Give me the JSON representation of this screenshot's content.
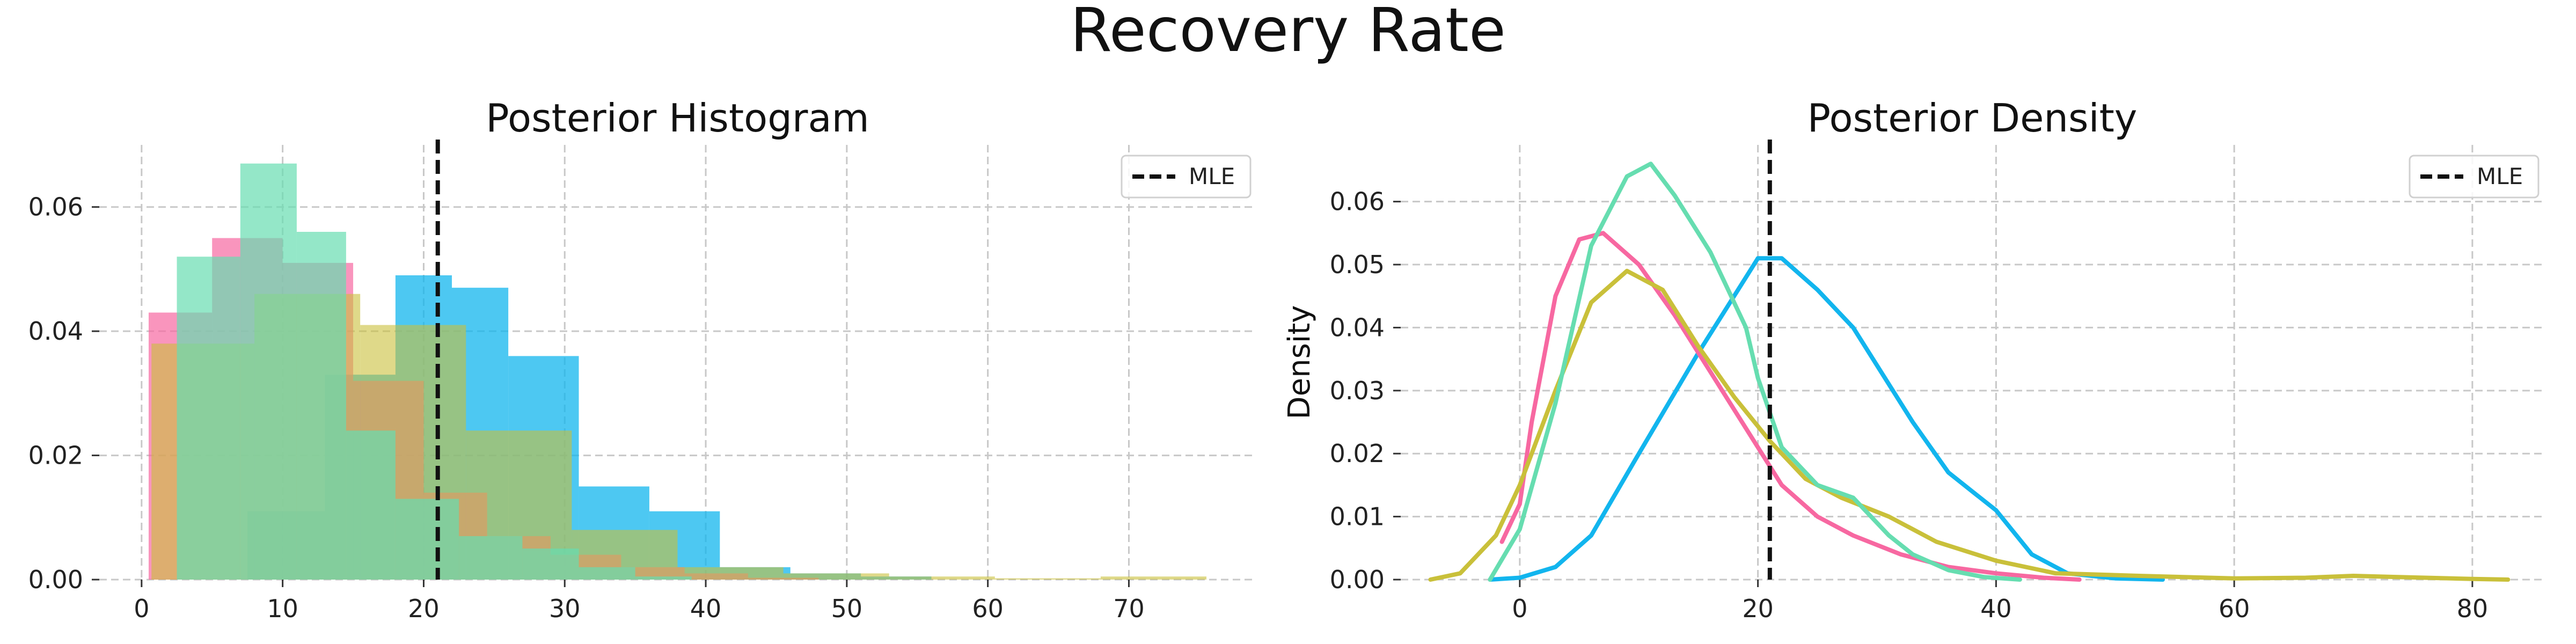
{
  "figure_title": "Recovery Rate",
  "colors": {
    "pink": "#f768a1",
    "mint": "#66ddb0",
    "olive": "#c9c03a",
    "cyan": "#12b5ee",
    "mle": "#111111",
    "grid": "#c8c8c8"
  },
  "chart_data": [
    {
      "type": "bar",
      "title": "Posterior Histogram",
      "xlabel": "",
      "ylabel": "",
      "xlim": [
        -3,
        79
      ],
      "ylim": [
        0,
        0.07
      ],
      "xticks": [
        0,
        10,
        20,
        30,
        40,
        50,
        60,
        70
      ],
      "xtick_labels": [
        "0",
        "10",
        "20",
        "30",
        "40",
        "50",
        "60",
        "70"
      ],
      "yticks": [
        0,
        0.02,
        0.04,
        0.06
      ],
      "ytick_labels": [
        "0.00",
        "0.02",
        "0.04",
        "0.06"
      ],
      "grid": true,
      "legend": {
        "position": "top-right",
        "entries": [
          "MLE"
        ]
      },
      "mle": 21,
      "series": [
        {
          "color": "#12b5ee",
          "alpha": 0.75,
          "edges": [
            2.5,
            7.5,
            13,
            18,
            22,
            26,
            31,
            36,
            41,
            46,
            51,
            56
          ],
          "values": [
            0.0,
            0.011,
            0.033,
            0.049,
            0.047,
            0.036,
            0.015,
            0.011,
            0.002,
            0.001,
            0.0005
          ]
        },
        {
          "color": "#f768a1",
          "alpha": 0.7,
          "edges": [
            0.5,
            5,
            10,
            15,
            20,
            24.5,
            29,
            34,
            38.5,
            43,
            48
          ],
          "values": [
            0.043,
            0.055,
            0.051,
            0.032,
            0.014,
            0.007,
            0.004,
            0.002,
            0.001,
            0.0003
          ]
        },
        {
          "color": "#c9c03a",
          "alpha": 0.6,
          "edges": [
            0.7,
            8,
            15.5,
            23,
            30.5,
            38,
            45.5,
            53,
            60.5,
            68,
            75.5
          ],
          "values": [
            0.038,
            0.046,
            0.041,
            0.024,
            0.008,
            0.002,
            0.001,
            0.0005,
            0.0002,
            0.0005
          ]
        },
        {
          "color": "#66ddb0",
          "alpha": 0.7,
          "edges": [
            2.5,
            7,
            11,
            14.5,
            18,
            22.5,
            27,
            31,
            35,
            39
          ],
          "values": [
            0.052,
            0.067,
            0.056,
            0.024,
            0.013,
            0.007,
            0.005,
            0.002,
            0.0005
          ]
        }
      ]
    },
    {
      "type": "line",
      "title": "Posterior Density",
      "xlabel": "",
      "ylabel": "Density",
      "xlim": [
        -10,
        86
      ],
      "ylim": [
        0,
        0.069
      ],
      "xticks": [
        0,
        20,
        40,
        60,
        80
      ],
      "xtick_labels": [
        "0",
        "20",
        "40",
        "60",
        "80"
      ],
      "yticks": [
        0,
        0.01,
        0.02,
        0.03,
        0.04,
        0.05,
        0.06
      ],
      "ytick_labels": [
        "0.00",
        "0.01",
        "0.02",
        "0.03",
        "0.04",
        "0.05",
        "0.06"
      ],
      "grid": true,
      "legend": {
        "position": "top-right",
        "entries": [
          "MLE"
        ]
      },
      "mle": 21,
      "series": [
        {
          "color": "#12b5ee",
          "x": [
            -2.5,
            0,
            3,
            6,
            10,
            15,
            20,
            22,
            25,
            28,
            30,
            33,
            36,
            38,
            40,
            43,
            46,
            50,
            54
          ],
          "y": [
            0.0,
            0.0003,
            0.002,
            0.007,
            0.02,
            0.036,
            0.051,
            0.051,
            0.046,
            0.04,
            0.034,
            0.025,
            0.017,
            0.014,
            0.011,
            0.004,
            0.001,
            0.0002,
            0.0
          ]
        },
        {
          "color": "#f768a1",
          "x": [
            -1.5,
            0,
            1,
            3,
            5,
            7,
            10,
            13,
            16,
            19,
            22,
            25,
            28,
            32,
            36,
            40,
            44,
            47
          ],
          "y": [
            0.006,
            0.012,
            0.025,
            0.045,
            0.054,
            0.055,
            0.05,
            0.042,
            0.033,
            0.024,
            0.015,
            0.01,
            0.007,
            0.004,
            0.002,
            0.001,
            0.0003,
            0.0
          ]
        },
        {
          "color": "#c9c03a",
          "x": [
            -7.5,
            -5,
            -2,
            0,
            3,
            6,
            9,
            12,
            15,
            18,
            21,
            24,
            27,
            31,
            35,
            40,
            45,
            52,
            60,
            66,
            70,
            76,
            80,
            83
          ],
          "y": [
            0.0,
            0.001,
            0.007,
            0.015,
            0.03,
            0.044,
            0.049,
            0.046,
            0.037,
            0.029,
            0.022,
            0.016,
            0.013,
            0.01,
            0.006,
            0.003,
            0.001,
            0.0006,
            0.0002,
            0.0003,
            0.0006,
            0.0003,
            0.0001,
            0.0
          ]
        },
        {
          "color": "#66ddb0",
          "x": [
            -2.5,
            0,
            3,
            6,
            9,
            11,
            13,
            16,
            19,
            20,
            22,
            25,
            28,
            31,
            33,
            36,
            39,
            42
          ],
          "y": [
            0.0,
            0.008,
            0.028,
            0.053,
            0.064,
            0.066,
            0.061,
            0.052,
            0.04,
            0.032,
            0.021,
            0.015,
            0.013,
            0.007,
            0.004,
            0.0015,
            0.0004,
            0.0
          ]
        }
      ]
    }
  ]
}
